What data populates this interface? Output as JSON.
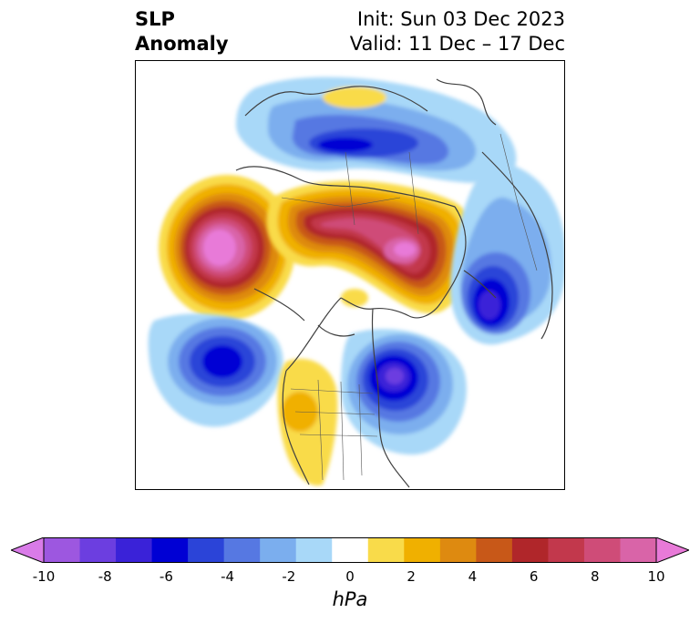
{
  "header": {
    "title_line1": "SLP",
    "title_line2": "Anomaly",
    "init_text": "Init: Sun 03 Dec 2023",
    "valid_text": "Valid: 11 Dec – 17 Dec"
  },
  "colorbar": {
    "unit": "hPa",
    "ticks": [
      "-10",
      "-8",
      "-6",
      "-4",
      "-2",
      "0",
      "2",
      "4",
      "6",
      "8",
      "10"
    ],
    "colors": [
      "#d97be8",
      "#9d57e0",
      "#6c3ee0",
      "#3a22d8",
      "#0000d4",
      "#2b44d8",
      "#5678e2",
      "#7baeee",
      "#a8d8f8",
      "#ffffff",
      "#f9db4a",
      "#f0b000",
      "#de8a10",
      "#c85818",
      "#b0262a",
      "#c2384c",
      "#cf4c78",
      "#d964a8",
      "#e87ad8"
    ]
  }
}
